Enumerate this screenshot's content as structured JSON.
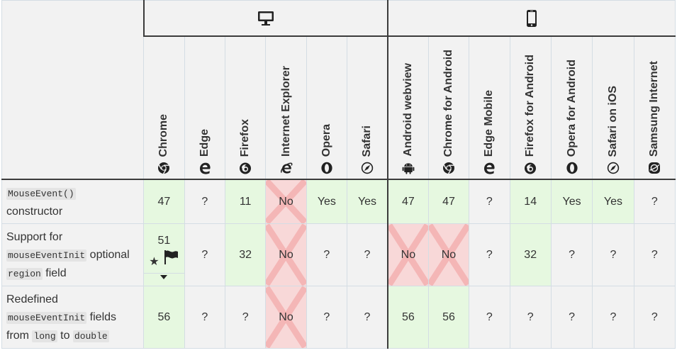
{
  "platforms": [
    {
      "name": "desktop",
      "icon": "desktop-monitor-icon"
    },
    {
      "name": "mobile",
      "icon": "mobile-phone-icon"
    }
  ],
  "browsers": [
    {
      "name": "Chrome",
      "icon": "chrome-icon"
    },
    {
      "name": "Edge",
      "icon": "edge-icon"
    },
    {
      "name": "Firefox",
      "icon": "firefox-icon"
    },
    {
      "name": "Internet Explorer",
      "icon": "internet-explorer-icon"
    },
    {
      "name": "Opera",
      "icon": "opera-icon"
    },
    {
      "name": "Safari",
      "icon": "safari-icon"
    },
    {
      "name": "Android webview",
      "icon": "android-icon"
    },
    {
      "name": "Chrome for Android",
      "icon": "chrome-icon"
    },
    {
      "name": "Edge Mobile",
      "icon": "edge-icon"
    },
    {
      "name": "Firefox for Android",
      "icon": "firefox-icon"
    },
    {
      "name": "Opera for Android",
      "icon": "opera-icon"
    },
    {
      "name": "Safari on iOS",
      "icon": "safari-icon"
    },
    {
      "name": "Samsung Internet",
      "icon": "samsung-internet-icon"
    }
  ],
  "rows": [
    {
      "feature": {
        "code1": "MouseEvent()",
        "text1": "constructor"
      },
      "cells": [
        {
          "v": "47",
          "s": "yes"
        },
        {
          "v": "?",
          "s": "unk"
        },
        {
          "v": "11",
          "s": "yes"
        },
        {
          "v": "No",
          "s": "no"
        },
        {
          "v": "Yes",
          "s": "yes"
        },
        {
          "v": "Yes",
          "s": "yes"
        },
        {
          "v": "47",
          "s": "yes"
        },
        {
          "v": "47",
          "s": "yes"
        },
        {
          "v": "?",
          "s": "unk"
        },
        {
          "v": "14",
          "s": "yes"
        },
        {
          "v": "Yes",
          "s": "yes"
        },
        {
          "v": "Yes",
          "s": "yes"
        },
        {
          "v": "?",
          "s": "unk"
        }
      ]
    },
    {
      "feature": {
        "text1": "Support for",
        "code1": "mouseEventInit",
        "text2": " optional",
        "code2": "region",
        "text3": " field"
      },
      "cells": [
        {
          "v": "51",
          "s": "yes",
          "flags": {
            "star": "★",
            "flag": "flag-icon",
            "expand": "expand-arrow-icon"
          }
        },
        {
          "v": "?",
          "s": "unk"
        },
        {
          "v": "32",
          "s": "yes"
        },
        {
          "v": "No",
          "s": "no"
        },
        {
          "v": "?",
          "s": "unk"
        },
        {
          "v": "?",
          "s": "unk"
        },
        {
          "v": "No",
          "s": "no"
        },
        {
          "v": "No",
          "s": "no"
        },
        {
          "v": "?",
          "s": "unk"
        },
        {
          "v": "32",
          "s": "yes"
        },
        {
          "v": "?",
          "s": "unk"
        },
        {
          "v": "?",
          "s": "unk"
        },
        {
          "v": "?",
          "s": "unk"
        }
      ]
    },
    {
      "feature": {
        "text1": "Redefined",
        "code1": "mouseEventInit",
        "text2": " fields",
        "text3": "from ",
        "code2": "long",
        "text4": " to ",
        "code3": "double"
      },
      "cells": [
        {
          "v": "56",
          "s": "yes"
        },
        {
          "v": "?",
          "s": "unk"
        },
        {
          "v": "?",
          "s": "unk"
        },
        {
          "v": "No",
          "s": "no"
        },
        {
          "v": "?",
          "s": "unk"
        },
        {
          "v": "?",
          "s": "unk"
        },
        {
          "v": "56",
          "s": "yes"
        },
        {
          "v": "56",
          "s": "yes"
        },
        {
          "v": "?",
          "s": "unk"
        },
        {
          "v": "?",
          "s": "unk"
        },
        {
          "v": "?",
          "s": "unk"
        },
        {
          "v": "?",
          "s": "unk"
        },
        {
          "v": "?",
          "s": "unk"
        }
      ]
    }
  ]
}
